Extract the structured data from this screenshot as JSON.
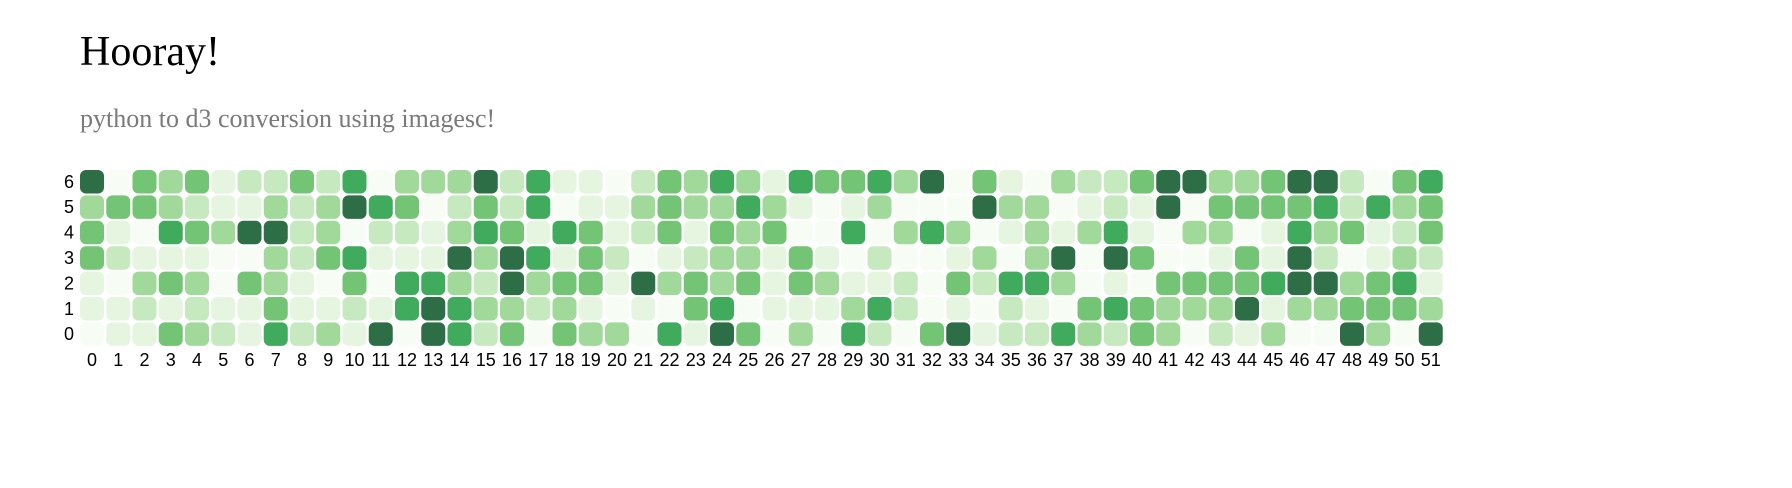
{
  "header": {
    "title": "Hooray!",
    "subtitle": "python to d3 conversion using imagesc!"
  },
  "chart_data": {
    "type": "heatmap",
    "title": "Hooray!",
    "subtitle": "python to d3 conversion using imagesc!",
    "xlabel": "",
    "ylabel": "",
    "x": [
      0,
      1,
      2,
      3,
      4,
      5,
      6,
      7,
      8,
      9,
      10,
      11,
      12,
      13,
      14,
      15,
      16,
      17,
      18,
      19,
      20,
      21,
      22,
      23,
      24,
      25,
      26,
      27,
      28,
      29,
      30,
      31,
      32,
      33,
      34,
      35,
      36,
      37,
      38,
      39,
      40,
      41,
      42,
      43,
      44,
      45,
      46,
      47,
      48,
      49,
      50,
      51
    ],
    "y": [
      0,
      1,
      2,
      3,
      4,
      5,
      6
    ],
    "value_range": [
      0,
      6
    ],
    "colormap": [
      "#f7fcf5",
      "#e5f5e0",
      "#c7e9c0",
      "#a1d99b",
      "#74c476",
      "#41ab5d",
      "#2d6e47"
    ],
    "grid": false,
    "legend": "none",
    "z": [
      [
        0,
        1,
        1,
        4,
        3,
        2,
        1,
        5,
        2,
        3,
        1,
        6,
        0,
        6,
        5,
        2,
        4,
        0,
        4,
        3,
        3,
        0,
        5,
        1,
        6,
        4,
        0,
        3,
        0,
        5,
        2,
        0,
        4,
        6,
        1,
        2,
        2,
        5,
        3,
        2,
        4,
        3,
        0,
        2,
        1,
        3,
        0,
        0,
        6,
        3,
        0,
        6
      ],
      [
        1,
        1,
        2,
        1,
        2,
        1,
        1,
        4,
        1,
        1,
        2,
        1,
        5,
        6,
        5,
        3,
        3,
        2,
        3,
        1,
        0,
        1,
        0,
        4,
        5,
        0,
        1,
        1,
        1,
        3,
        5,
        2,
        0,
        1,
        0,
        2,
        1,
        0,
        4,
        5,
        4,
        3,
        3,
        3,
        6,
        1,
        3,
        3,
        4,
        4,
        4,
        3
      ],
      [
        1,
        0,
        3,
        4,
        3,
        0,
        4,
        3,
        1,
        0,
        4,
        0,
        5,
        5,
        3,
        2,
        6,
        3,
        4,
        4,
        1,
        6,
        3,
        4,
        3,
        4,
        1,
        4,
        3,
        1,
        1,
        2,
        0,
        4,
        2,
        5,
        5,
        3,
        0,
        1,
        0,
        4,
        4,
        4,
        4,
        5,
        6,
        6,
        3,
        4,
        5,
        1
      ],
      [
        4,
        2,
        1,
        1,
        1,
        0,
        0,
        3,
        2,
        4,
        5,
        1,
        1,
        1,
        6,
        3,
        6,
        5,
        1,
        4,
        2,
        0,
        1,
        2,
        3,
        3,
        1,
        4,
        1,
        0,
        2,
        0,
        0,
        1,
        3,
        0,
        3,
        6,
        0,
        6,
        4,
        0,
        0,
        1,
        4,
        1,
        6,
        2,
        0,
        1,
        3,
        2
      ],
      [
        4,
        1,
        0,
        5,
        4,
        3,
        6,
        6,
        2,
        3,
        0,
        2,
        2,
        1,
        3,
        5,
        4,
        1,
        5,
        4,
        1,
        2,
        4,
        1,
        4,
        3,
        4,
        0,
        0,
        5,
        0,
        3,
        5,
        3,
        0,
        1,
        3,
        1,
        3,
        5,
        1,
        0,
        3,
        3,
        0,
        1,
        5,
        3,
        4,
        1,
        2,
        4
      ],
      [
        3,
        4,
        4,
        3,
        2,
        1,
        1,
        3,
        2,
        3,
        6,
        5,
        4,
        0,
        2,
        4,
        2,
        5,
        0,
        1,
        1,
        3,
        4,
        3,
        3,
        5,
        3,
        1,
        0,
        1,
        3,
        0,
        0,
        0,
        6,
        3,
        3,
        0,
        1,
        2,
        1,
        6,
        0,
        4,
        4,
        4,
        4,
        5,
        2,
        5,
        3,
        4
      ],
      [
        6,
        0,
        4,
        3,
        4,
        1,
        2,
        2,
        4,
        2,
        5,
        0,
        3,
        3,
        3,
        6,
        2,
        5,
        1,
        1,
        0,
        2,
        4,
        3,
        5,
        3,
        1,
        5,
        4,
        4,
        5,
        3,
        6,
        0,
        4,
        1,
        0,
        3,
        2,
        2,
        4,
        6,
        6,
        3,
        3,
        4,
        6,
        6,
        2,
        0,
        4,
        5
      ]
    ]
  }
}
